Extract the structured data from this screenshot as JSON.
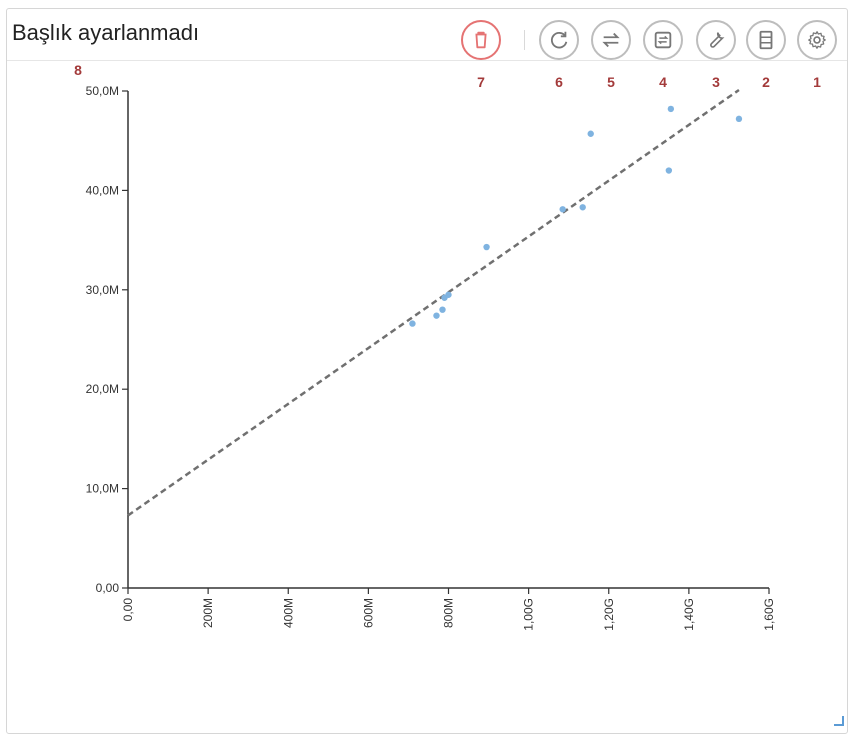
{
  "header": {
    "title": "Başlık ayarlanmadı"
  },
  "toolbar": {
    "buttons": [
      {
        "id": "delete",
        "icon": "trash-icon",
        "number": "7"
      },
      {
        "id": "refresh",
        "icon": "refresh-icon",
        "number": "6"
      },
      {
        "id": "swap",
        "icon": "swap-icon",
        "number": "5"
      },
      {
        "id": "transform",
        "icon": "repeat-icon",
        "number": "4"
      },
      {
        "id": "wrench",
        "icon": "wrench-icon",
        "number": "3"
      },
      {
        "id": "layout",
        "icon": "layout-icon",
        "number": "2"
      },
      {
        "id": "settings",
        "icon": "gear-icon",
        "number": "1"
      }
    ],
    "axis_marker": "8"
  },
  "colors": {
    "points": "#7fb3e0",
    "trend": "#707070",
    "danger": "#e57373",
    "marker": "#a33a3a"
  },
  "chart_data": {
    "type": "scatter",
    "xlim": [
      0,
      1600000000
    ],
    "ylim": [
      0,
      50000000
    ],
    "x_ticks": [
      0,
      200000000,
      400000000,
      600000000,
      800000000,
      1000000000,
      1200000000,
      1400000000,
      1600000000
    ],
    "x_tick_labels": [
      "0,00",
      "200M",
      "400M",
      "600M",
      "800M",
      "1,00G",
      "1,20G",
      "1,40G",
      "1,60G"
    ],
    "y_ticks": [
      0,
      10000000,
      20000000,
      30000000,
      40000000,
      50000000
    ],
    "y_tick_labels": [
      "0,00",
      "10,0M",
      "20,0M",
      "30,0M",
      "40,0M",
      "50,0M"
    ],
    "points": [
      {
        "x": 710000000,
        "y": 26600000
      },
      {
        "x": 770000000,
        "y": 27400000
      },
      {
        "x": 785000000,
        "y": 28000000
      },
      {
        "x": 790000000,
        "y": 29200000
      },
      {
        "x": 800000000,
        "y": 29500000
      },
      {
        "x": 895000000,
        "y": 34300000
      },
      {
        "x": 1085000000,
        "y": 38100000
      },
      {
        "x": 1135000000,
        "y": 38300000
      },
      {
        "x": 1155000000,
        "y": 45700000
      },
      {
        "x": 1350000000,
        "y": 42000000
      },
      {
        "x": 1355000000,
        "y": 48200000
      },
      {
        "x": 1525000000,
        "y": 47200000
      }
    ],
    "trendline": {
      "x": [
        0,
        1525000000
      ],
      "y": [
        7300000,
        50100000
      ]
    },
    "grid": false,
    "legend": "none"
  }
}
